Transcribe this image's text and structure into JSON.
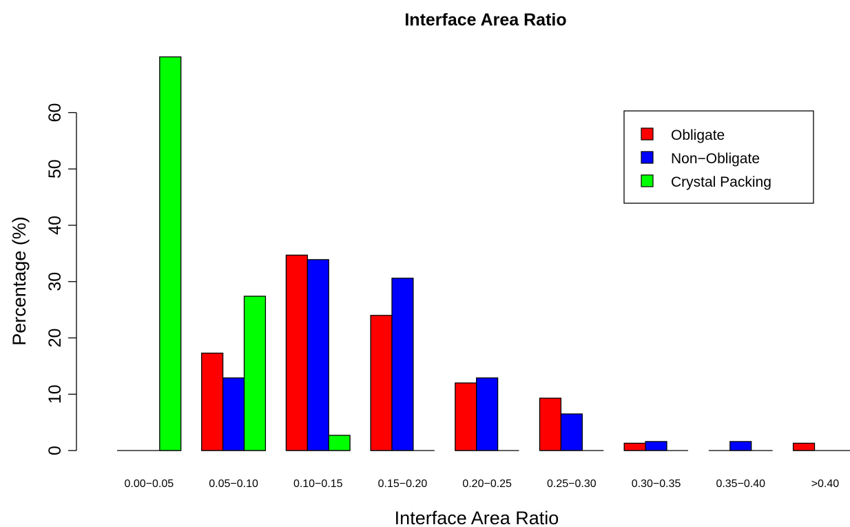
{
  "chart_data": {
    "type": "bar",
    "title": "Interface Area Ratio",
    "xlabel": "Interface Area Ratio",
    "ylabel": "Percentage (%)",
    "categories": [
      "0.00−0.05",
      "0.05−0.10",
      "0.10−0.15",
      "0.15−0.20",
      "0.20−0.25",
      "0.25−0.30",
      "0.30−0.35",
      "0.35−0.40",
      ">0.40"
    ],
    "series": [
      {
        "name": "Obligate",
        "color": "#ff0000",
        "values": [
          0,
          17.3,
          34.7,
          24.0,
          12.0,
          9.3,
          1.3,
          0,
          1.3
        ]
      },
      {
        "name": "Non−Obligate",
        "color": "#0000ff",
        "values": [
          0,
          12.9,
          33.9,
          30.6,
          12.9,
          6.5,
          1.6,
          1.6,
          0
        ]
      },
      {
        "name": "Crystal Packing",
        "color": "#00ff00",
        "values": [
          69.9,
          27.4,
          2.7,
          0,
          0,
          0,
          0,
          0,
          0
        ]
      }
    ],
    "yticks": [
      0,
      10,
      20,
      30,
      40,
      50,
      60
    ],
    "ylim": [
      0,
      70
    ],
    "grid": false,
    "legend_position": "top-right"
  }
}
